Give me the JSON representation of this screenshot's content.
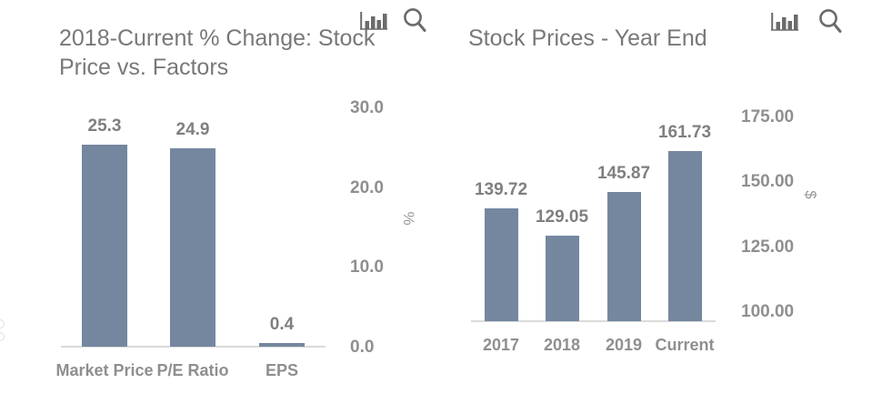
{
  "colors": {
    "bar": "#74879f",
    "axis_line": "#dadada",
    "title": "#787878",
    "tick_label": "#8f8f8f",
    "data_label": "#7f7f7f",
    "icon": "#6b6b6b"
  },
  "toolbar": {
    "chart_type_icon": "bar-chart-icon",
    "zoom_icon": "search-icon"
  },
  "chart_data": [
    {
      "type": "bar",
      "title": "2018-Current % Change: Stock Price vs. Factors",
      "title_lines": [
        "2018-Current % Change: Stock",
        "Price vs. Factors"
      ],
      "categories": [
        "Market Price",
        "P/E Ratio",
        "EPS"
      ],
      "values": [
        25.3,
        24.9,
        0.4
      ],
      "data_labels": [
        "25.3",
        "24.9",
        "0.4"
      ],
      "ylabel": "%",
      "ylim": [
        0,
        30
      ],
      "yticks": [
        {
          "value": 0,
          "label": "0.0"
        },
        {
          "value": 10,
          "label": "10.0"
        },
        {
          "value": 20,
          "label": "20.0"
        },
        {
          "value": 30,
          "label": "30.0"
        }
      ],
      "grid": false,
      "legend": "none",
      "axis_side": "right",
      "bar_color": "#74879f"
    },
    {
      "type": "bar",
      "title": "Stock Prices - Year End",
      "title_lines": [
        "Stock Prices - Year End"
      ],
      "categories": [
        "2017",
        "2018",
        "2019",
        "Current"
      ],
      "values": [
        139.72,
        129.05,
        145.87,
        161.73
      ],
      "data_labels": [
        "139.72",
        "129.05",
        "145.87",
        "161.73"
      ],
      "ylabel": "$",
      "ylim": [
        96,
        175
      ],
      "yticks": [
        {
          "value": 100,
          "label": "100.00"
        },
        {
          "value": 125,
          "label": "125.00"
        },
        {
          "value": 150,
          "label": "150.00"
        },
        {
          "value": 175,
          "label": "175.00"
        }
      ],
      "grid": false,
      "legend": "none",
      "axis_side": "right",
      "bar_color": "#74879f"
    }
  ]
}
